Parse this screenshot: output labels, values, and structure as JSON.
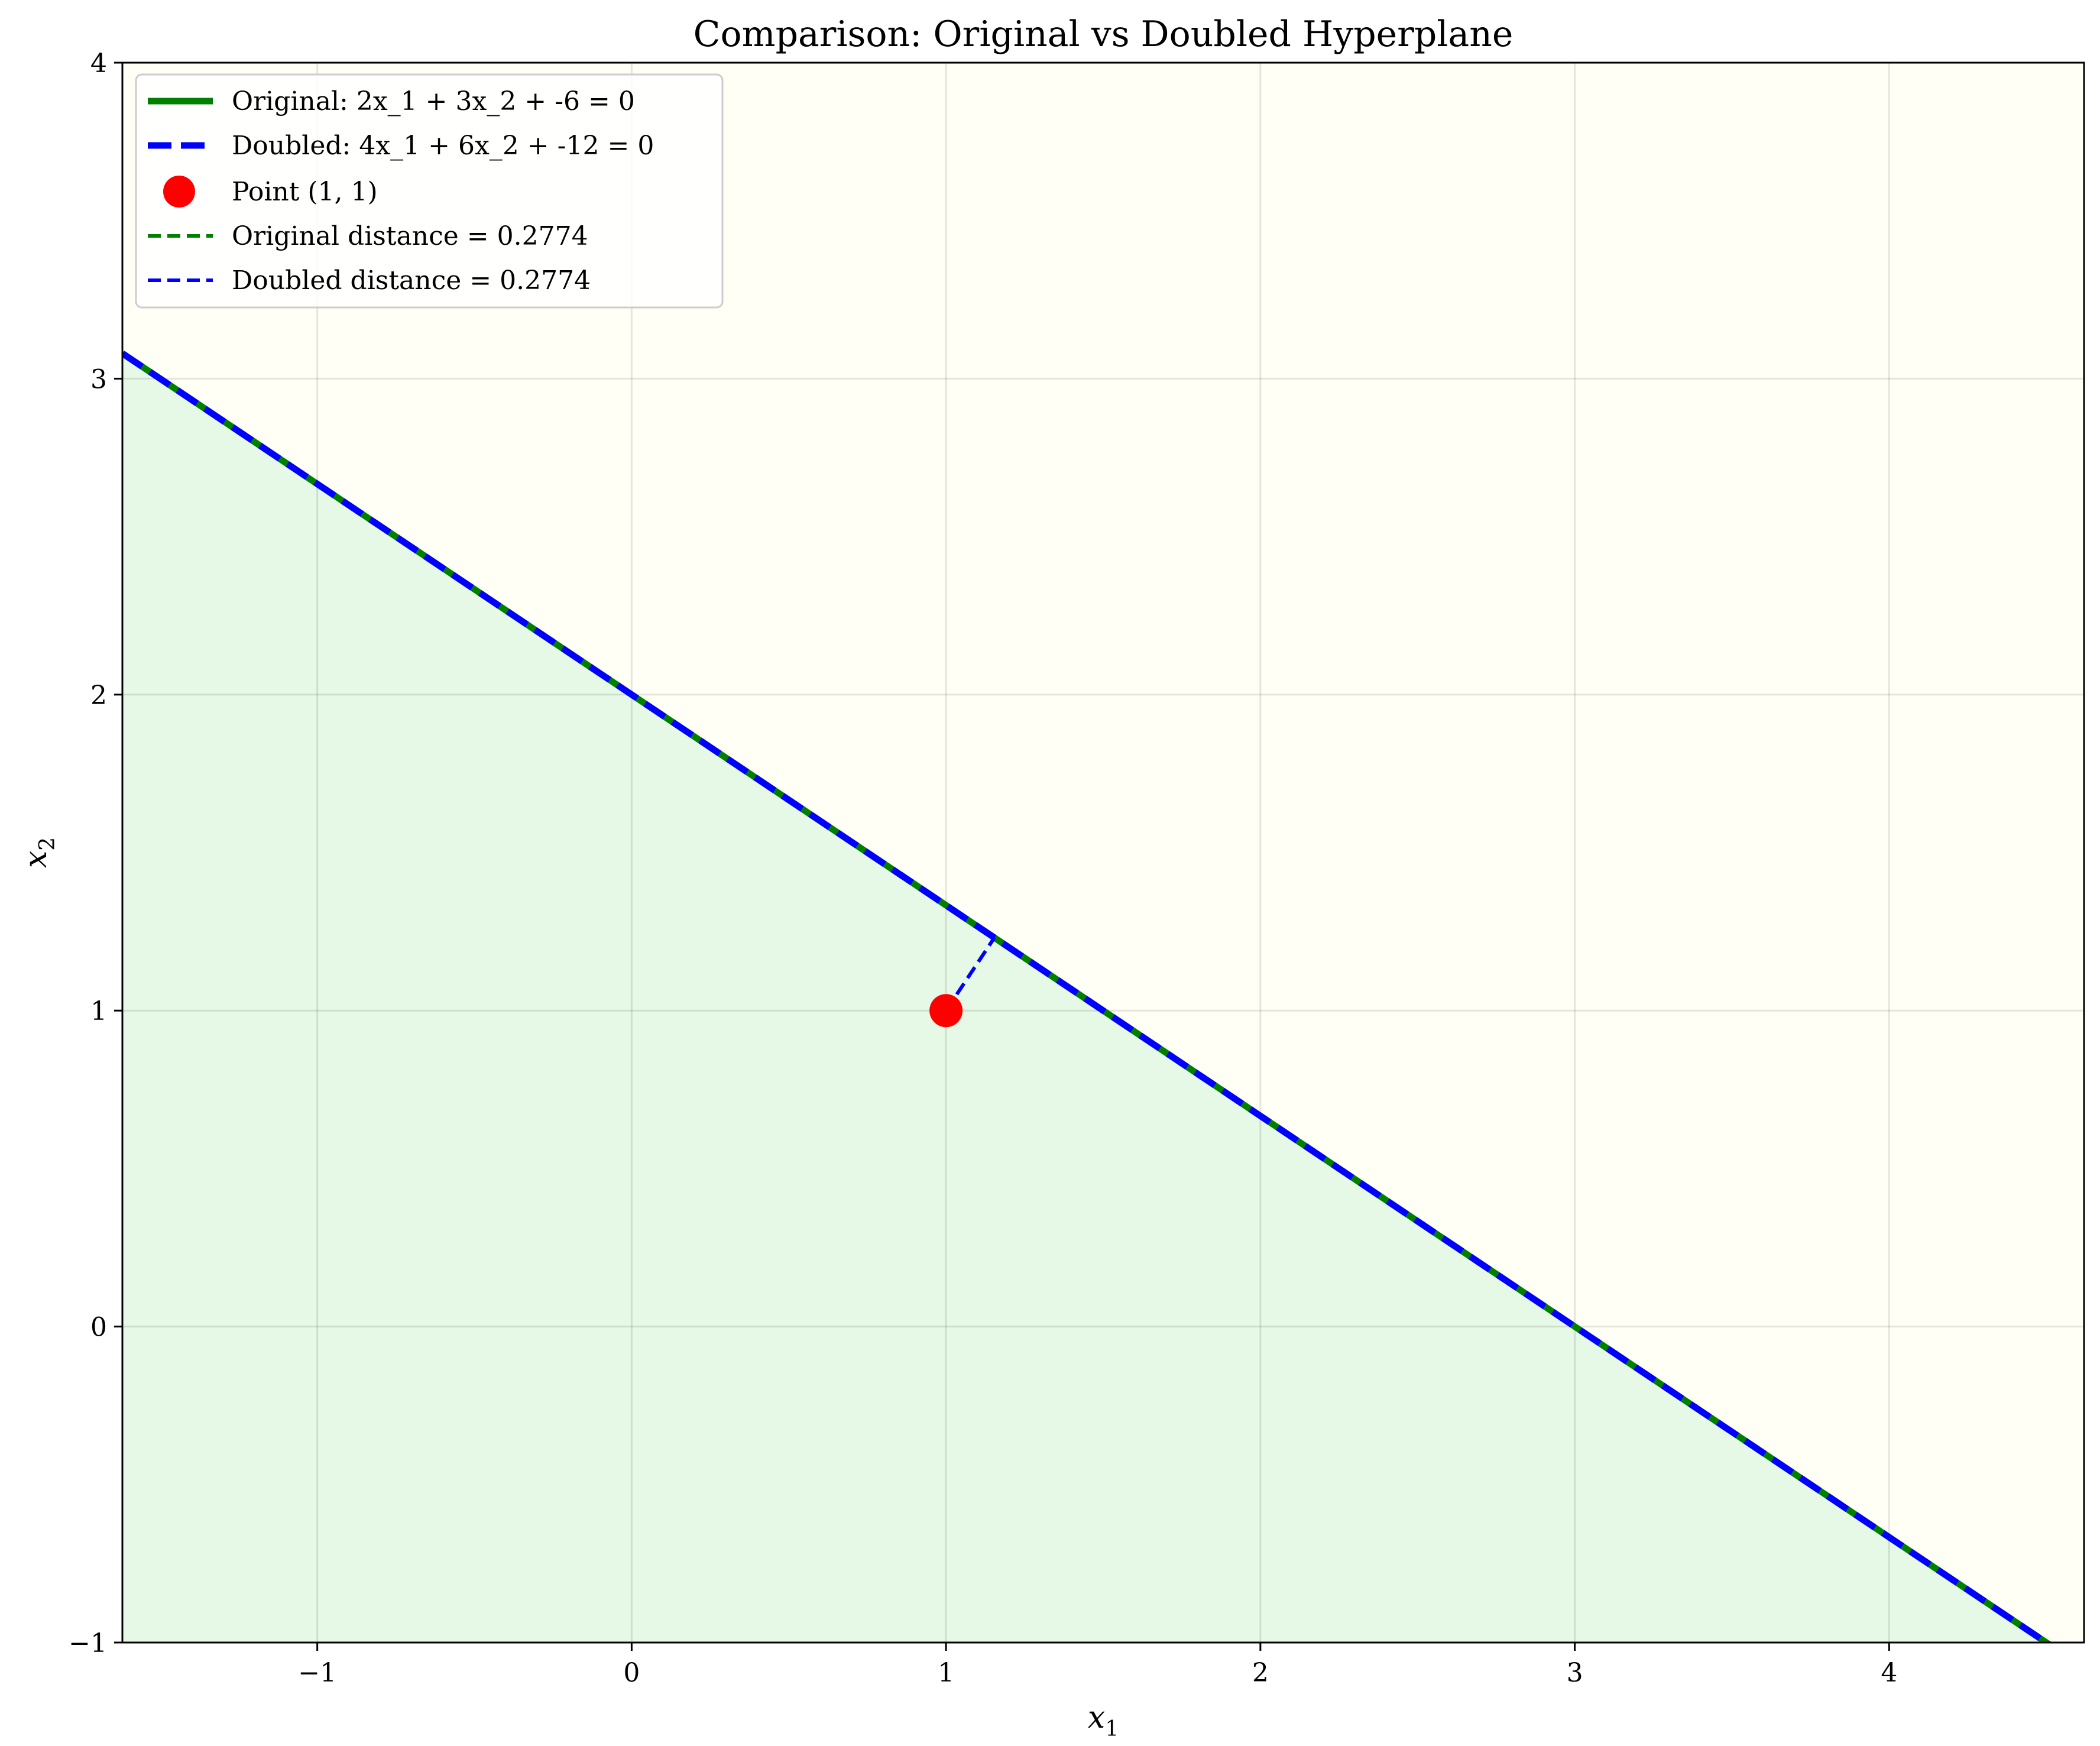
{
  "chart_data": {
    "type": "line",
    "title": "Comparison: Original vs Doubled Hyperplane",
    "xlabel": "x",
    "xlabel_sub": "1",
    "ylabel": "x",
    "ylabel_sub": "2",
    "xlim": [
      -1.62,
      4.62
    ],
    "ylim": [
      -1,
      4
    ],
    "xticks": [
      -1,
      0,
      1,
      2,
      3,
      4
    ],
    "yticks": [
      -1,
      0,
      1,
      2,
      3,
      4
    ],
    "xtick_labels": [
      "−1",
      "0",
      "1",
      "2",
      "3",
      "4"
    ],
    "ytick_labels": [
      "−1",
      "0",
      "1",
      "2",
      "3",
      "4"
    ],
    "grid": true,
    "legend_position": "top-left",
    "regions": {
      "below_color": "#e6f8e6",
      "above_color": "#fffff5"
    },
    "series": [
      {
        "name": "Original: 2x_1 + 3x_2 + -6 = 0",
        "kind": "line",
        "color": "#008000",
        "style": "solid",
        "x": [
          -1.62,
          4.62
        ],
        "y": [
          3.08,
          -1.08
        ]
      },
      {
        "name": "Doubled: 4x_1 + 6x_2 + -12 = 0",
        "kind": "line",
        "color": "#0000ff",
        "style": "dashed",
        "x": [
          -1.62,
          4.62
        ],
        "y": [
          3.08,
          -1.08
        ]
      },
      {
        "name": "Point (1, 1)",
        "kind": "scatter",
        "color": "#ff0000",
        "x": [
          1
        ],
        "y": [
          1
        ]
      },
      {
        "name": "Original distance = 0.2774",
        "kind": "segment",
        "color": "#008000",
        "style": "dashed",
        "x": [
          1,
          1.154
        ],
        "y": [
          1,
          1.231
        ]
      },
      {
        "name": "Doubled distance = 0.2774",
        "kind": "segment",
        "color": "#0000ff",
        "style": "dashed",
        "x": [
          1,
          1.154
        ],
        "y": [
          1,
          1.231
        ]
      }
    ]
  }
}
